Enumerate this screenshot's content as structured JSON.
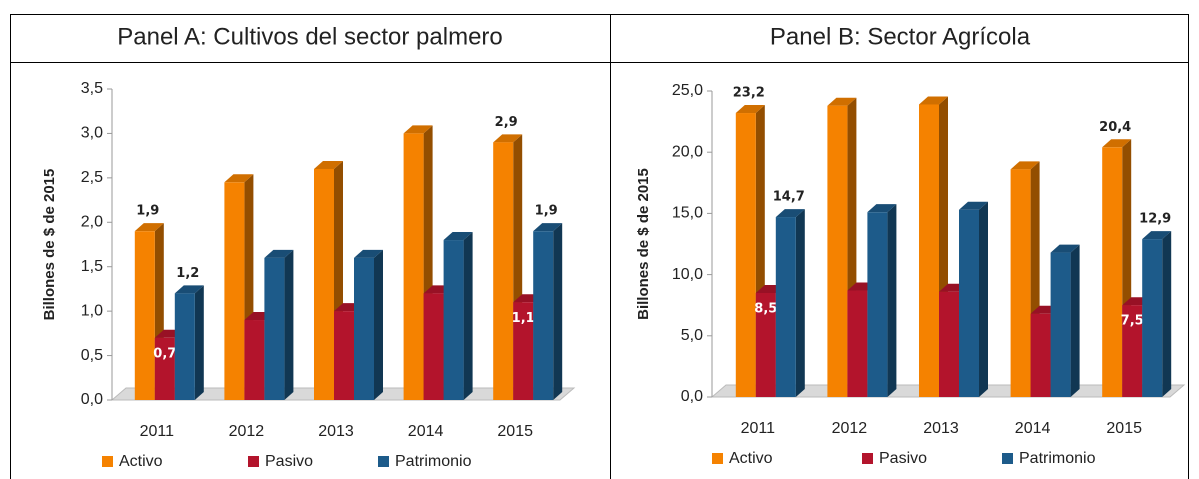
{
  "chart_data": [
    {
      "type": "bar",
      "title": "Panel A: Cultivos del sector palmero",
      "y_label": "Billones de $ de 2015",
      "categories": [
        "2011",
        "2012",
        "2013",
        "2014",
        "2015"
      ],
      "series": [
        {
          "name": "Activo",
          "color": "#f58200",
          "values": [
            1.9,
            2.45,
            2.6,
            3.0,
            2.9
          ],
          "value_labels": [
            "1,9",
            null,
            null,
            null,
            "2,9"
          ]
        },
        {
          "name": "Pasivo",
          "color": "#b3142c",
          "values": [
            0.7,
            0.9,
            1.0,
            1.2,
            1.1
          ],
          "value_labels": [
            "0,7",
            null,
            null,
            null,
            "1,1"
          ]
        },
        {
          "name": "Patrimonio",
          "color": "#1d5b8a",
          "values": [
            1.2,
            1.6,
            1.6,
            1.8,
            1.9
          ],
          "value_labels": [
            "1,2",
            null,
            null,
            null,
            "1,9"
          ]
        }
      ],
      "ylim": [
        0,
        3.5
      ],
      "yticks": [
        {
          "value": 0,
          "label": "0,0"
        },
        {
          "value": 0.5,
          "label": "0,5"
        },
        {
          "value": 1,
          "label": "1,0"
        },
        {
          "value": 1.5,
          "label": "1,5"
        },
        {
          "value": 2,
          "label": "2,0"
        },
        {
          "value": 2.5,
          "label": "2,5"
        },
        {
          "value": 3,
          "label": "3,0"
        },
        {
          "value": 3.5,
          "label": "3,5"
        }
      ],
      "grid": false,
      "legend": "bottom"
    },
    {
      "type": "bar",
      "title": "Panel B: Sector Agrícola",
      "y_label": "Billones de $ de 2015",
      "categories": [
        "2011",
        "2012",
        "2013",
        "2014",
        "2015"
      ],
      "series": [
        {
          "name": "Activo",
          "color": "#f58200",
          "values": [
            23.2,
            23.8,
            23.9,
            18.6,
            20.4
          ],
          "value_labels": [
            "23,2",
            null,
            null,
            null,
            "20,4"
          ]
        },
        {
          "name": "Pasivo",
          "color": "#b3142c",
          "values": [
            8.5,
            8.7,
            8.6,
            6.8,
            7.5
          ],
          "value_labels": [
            "8,5",
            null,
            null,
            null,
            "7,5"
          ]
        },
        {
          "name": "Patrimonio",
          "color": "#1d5b8a",
          "values": [
            14.7,
            15.1,
            15.3,
            11.8,
            12.9
          ],
          "value_labels": [
            "14,7",
            null,
            null,
            null,
            "12,9"
          ]
        }
      ],
      "ylim": [
        0,
        25
      ],
      "yticks": [
        {
          "value": 0,
          "label": "0,0"
        },
        {
          "value": 5,
          "label": "5,0"
        },
        {
          "value": 10,
          "label": "10,0"
        },
        {
          "value": 15,
          "label": "15,0"
        },
        {
          "value": 20,
          "label": "20,0"
        },
        {
          "value": 25,
          "label": "25,0"
        }
      ],
      "grid": false,
      "legend": "bottom"
    }
  ]
}
